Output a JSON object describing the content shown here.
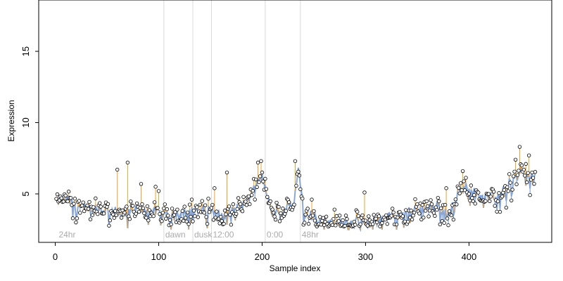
{
  "chart_data": {
    "type": "scatter",
    "title": "",
    "xlabel": "Sample index",
    "ylabel": "Expression",
    "xlim": [
      -16,
      480
    ],
    "ylim": [
      1.6,
      18.6
    ],
    "x_ticks": [
      0,
      100,
      200,
      300,
      400
    ],
    "y_ticks": [
      5,
      10,
      15
    ],
    "grid": false,
    "legend": "none",
    "colors": {
      "fit_line": "#8aa7d6",
      "residual_up": "#f0a030",
      "residual_down": "#6f95cf",
      "region_line": "#d8d8d8",
      "region_label": "#aaaaaa",
      "point_edge": "#000000"
    },
    "regions": [
      {
        "x": 2,
        "label": "24hr"
      },
      {
        "x": 105,
        "label": "dawn"
      },
      {
        "x": 133,
        "label": "dusk"
      },
      {
        "x": 151,
        "label": "12:00"
      },
      {
        "x": 203,
        "label": "0:00"
      },
      {
        "x": 237,
        "label": "48hr"
      }
    ],
    "anchors": [
      [
        1,
        4.4
      ],
      [
        10,
        4.7
      ],
      [
        20,
        4.2
      ],
      [
        30,
        4.0
      ],
      [
        40,
        3.9
      ],
      [
        50,
        3.9
      ],
      [
        60,
        3.7
      ],
      [
        70,
        3.6
      ],
      [
        80,
        3.9
      ],
      [
        90,
        3.8
      ],
      [
        100,
        3.7
      ],
      [
        110,
        3.5
      ],
      [
        120,
        3.7
      ],
      [
        130,
        3.9
      ],
      [
        140,
        3.8
      ],
      [
        150,
        3.9
      ],
      [
        160,
        3.4
      ],
      [
        170,
        3.8
      ],
      [
        180,
        4.1
      ],
      [
        190,
        5.0
      ],
      [
        200,
        6.2
      ],
      [
        205,
        5.0
      ],
      [
        210,
        3.7
      ],
      [
        220,
        3.6
      ],
      [
        230,
        4.6
      ],
      [
        235,
        6.8
      ],
      [
        240,
        4.0
      ],
      [
        250,
        3.4
      ],
      [
        260,
        3.1
      ],
      [
        270,
        3.0
      ],
      [
        280,
        3.0
      ],
      [
        290,
        3.0
      ],
      [
        300,
        2.9
      ],
      [
        310,
        3.1
      ],
      [
        320,
        3.3
      ],
      [
        330,
        3.5
      ],
      [
        340,
        3.7
      ],
      [
        350,
        3.9
      ],
      [
        360,
        4.0
      ],
      [
        370,
        4.2
      ],
      [
        380,
        3.4
      ],
      [
        390,
        5.2
      ],
      [
        400,
        5.6
      ],
      [
        410,
        5.0
      ],
      [
        420,
        4.7
      ],
      [
        430,
        4.9
      ],
      [
        440,
        5.8
      ],
      [
        450,
        6.5
      ],
      [
        460,
        6.3
      ],
      [
        463,
        6.3
      ]
    ],
    "outliers": [
      {
        "x": 60,
        "y": 6.7
      },
      {
        "x": 70,
        "y": 7.2
      },
      {
        "x": 83,
        "y": 5.7
      },
      {
        "x": 97,
        "y": 5.5
      },
      {
        "x": 100,
        "y": 5.2
      },
      {
        "x": 132,
        "y": 4.6
      },
      {
        "x": 154,
        "y": 5.4
      },
      {
        "x": 166,
        "y": 6.5
      },
      {
        "x": 196,
        "y": 7.2
      },
      {
        "x": 199,
        "y": 7.3
      },
      {
        "x": 232,
        "y": 7.3
      },
      {
        "x": 248,
        "y": 4.6
      },
      {
        "x": 270,
        "y": 3.9
      },
      {
        "x": 299,
        "y": 5.1
      },
      {
        "x": 378,
        "y": 5.4
      },
      {
        "x": 394,
        "y": 6.6
      },
      {
        "x": 445,
        "y": 7.4
      },
      {
        "x": 449,
        "y": 8.3
      },
      {
        "x": 455,
        "y": 7.1
      },
      {
        "x": 458,
        "y": 7.7
      },
      {
        "x": 461,
        "y": 6.5
      },
      {
        "x": 110,
        "y": 2.8
      },
      {
        "x": 380,
        "y": 2.8
      },
      {
        "x": 163,
        "y": 2.9
      },
      {
        "x": 245,
        "y": 2.9
      }
    ],
    "n_points": 464
  }
}
